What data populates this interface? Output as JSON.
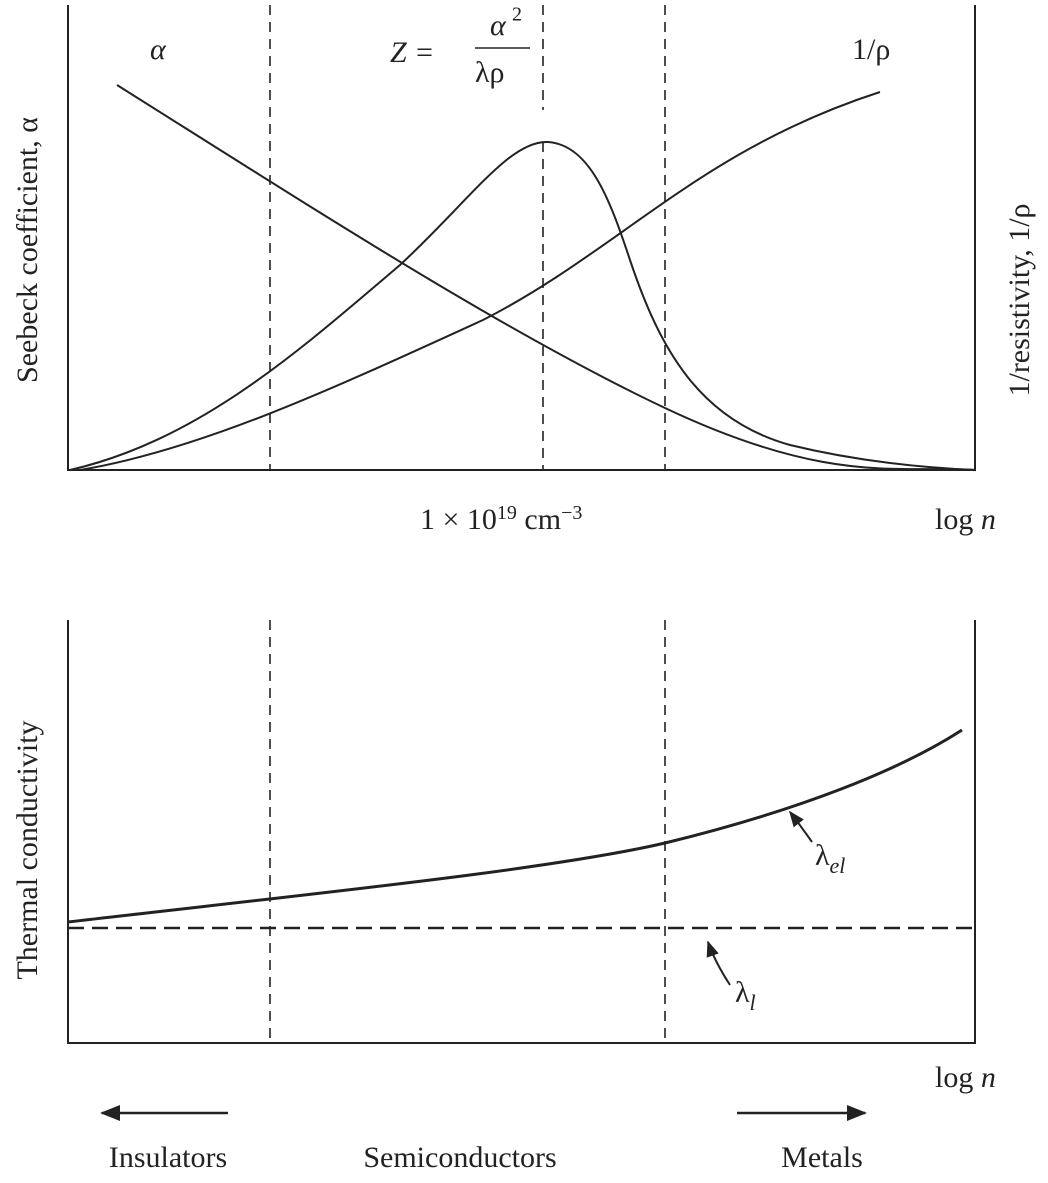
{
  "top_panel": {
    "curve_labels": {
      "alpha": "α",
      "z_formula": {
        "lhs": "Z =",
        "numerator": "α",
        "numerator_exp": "2",
        "denominator": "λρ"
      },
      "inv_rho": "1/ρ"
    },
    "y_label_left": "Seebeck coefficient, α",
    "y_label_right": "1/resistivity, 1/ρ",
    "x_marker": {
      "base": "1 × 10",
      "exp": "19",
      "unit": " cm",
      "unit_exp": "−3"
    },
    "x_label": {
      "text": "log ",
      "var": "n"
    }
  },
  "bottom_panel": {
    "y_label": "Thermal conductivity",
    "curve_labels": {
      "electronic": {
        "symbol": "λ",
        "sub": "el"
      },
      "lattice": {
        "symbol": "λ",
        "sub": "l"
      }
    },
    "x_label": {
      "text": "log ",
      "var": "n"
    }
  },
  "regions": [
    "Insulators",
    "Semiconductors",
    "Metals"
  ]
}
